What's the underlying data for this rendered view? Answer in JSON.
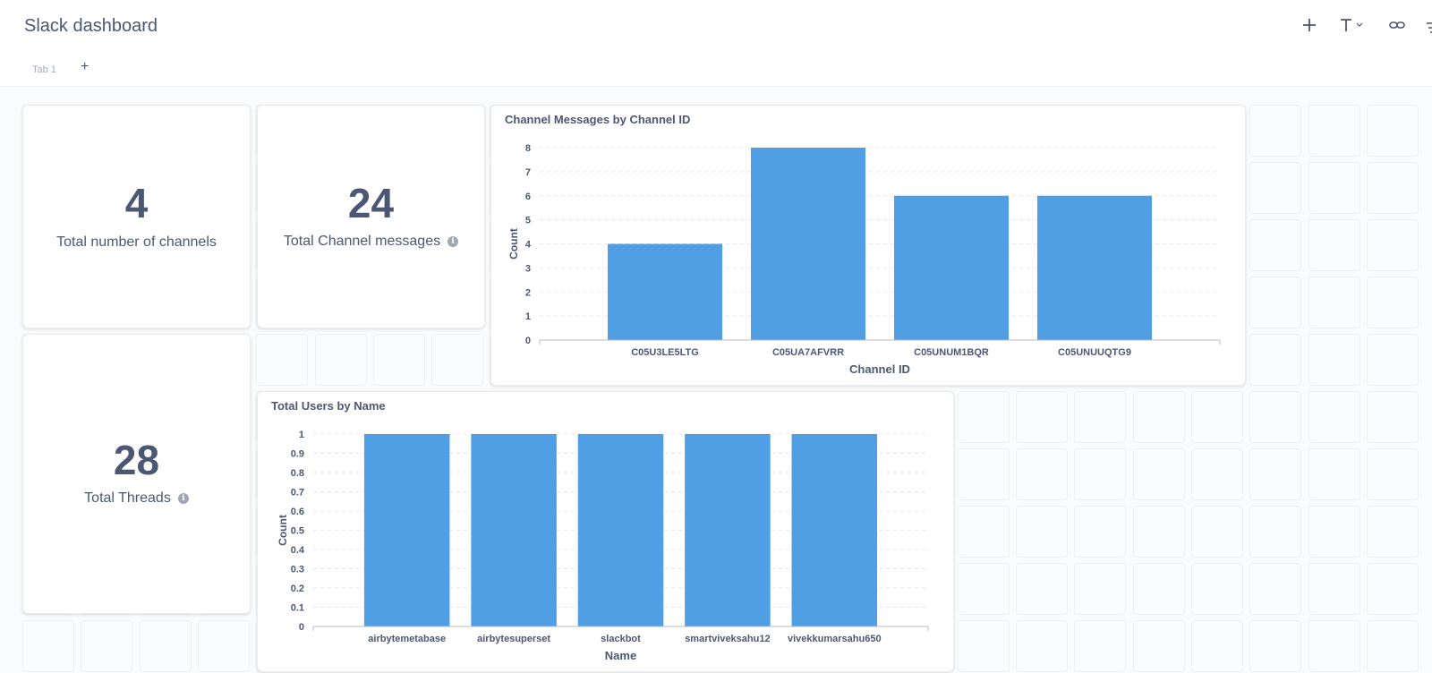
{
  "dashboard": {
    "title": "Slack dashboard",
    "tabs": [
      {
        "label": "Tab 1"
      }
    ],
    "add_tab_symbol": "+"
  },
  "toolbar": {
    "icons": [
      "add-icon",
      "text-icon",
      "link-icon",
      "filter-icon"
    ]
  },
  "cards": {
    "channels": {
      "value": "4",
      "label": "Total number of channels"
    },
    "messages": {
      "value": "24",
      "label": "Total Channel messages",
      "info": "i"
    },
    "threads": {
      "value": "28",
      "label": "Total Threads",
      "info": "i"
    }
  },
  "colors": {
    "bar": "#509ee3",
    "text": "#4c5773",
    "grid": "#e5e8ec"
  },
  "chart_data": [
    {
      "type": "bar",
      "title": "Channel Messages by Channel ID",
      "xlabel": "Channel ID",
      "ylabel": "Count",
      "categories": [
        "C05U3LE5LTG",
        "C05UA7AFVRR",
        "C05UNUM1BQR",
        "C05UNUUQTG9"
      ],
      "values": [
        4,
        8,
        6,
        6
      ],
      "ylim": [
        0,
        8
      ],
      "yticks": [
        "0",
        "1",
        "2",
        "3",
        "4",
        "5",
        "6",
        "7",
        "8"
      ],
      "grid": true
    },
    {
      "type": "bar",
      "title": "Total Users by Name",
      "xlabel": "Name",
      "ylabel": "Count",
      "categories": [
        "airbytemetabase",
        "airbytesuperset",
        "slackbot",
        "smartviveksahu12",
        "vivekkumarsahu650"
      ],
      "values": [
        1,
        1,
        1,
        1,
        1
      ],
      "ylim": [
        0,
        1
      ],
      "yticks": [
        "0",
        "0.1",
        "0.2",
        "0.3",
        "0.4",
        "0.5",
        "0.6",
        "0.7",
        "0.8",
        "0.9",
        "1"
      ],
      "grid": true
    }
  ]
}
